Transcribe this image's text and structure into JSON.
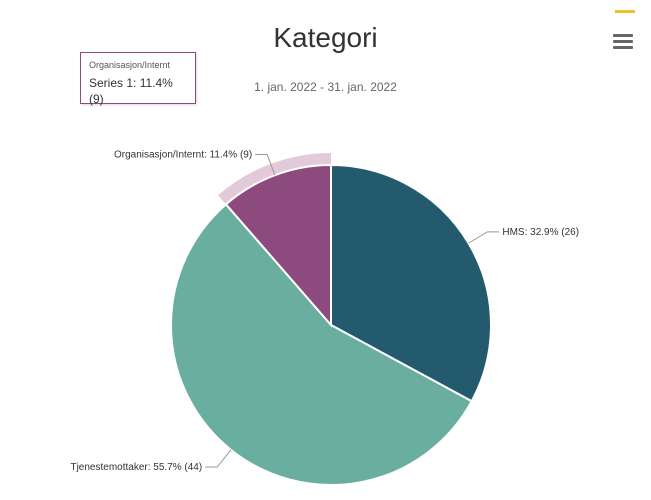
{
  "chart_data": {
    "type": "pie",
    "title": "Kategori",
    "subtitle": "1. jan. 2022 - 31. jan. 2022",
    "slices": [
      {
        "name": "HMS",
        "percent": 32.9,
        "count": 26,
        "color": "#235a6e",
        "label": "HMS: 32.9% (26)"
      },
      {
        "name": "Tjenestemottaker",
        "percent": 55.7,
        "count": 44,
        "color": "#6aaea0",
        "label": "Tjenestemottaker: 55.7% (44)"
      },
      {
        "name": "Organisasjon/Internt",
        "percent": 11.4,
        "count": 9,
        "color": "#8c4a7f",
        "label": "Organisasjon/Internt: 11.4% (9)",
        "hovered": true
      }
    ],
    "hover_color": "#e3cadb"
  },
  "tooltip": {
    "category": "Organisasjon/Internt",
    "series_line": "Series 1: 11.4% (9)"
  },
  "menu": {
    "icon": "hamburger-menu-icon"
  },
  "colors": {
    "accent": "#f3c02a"
  }
}
